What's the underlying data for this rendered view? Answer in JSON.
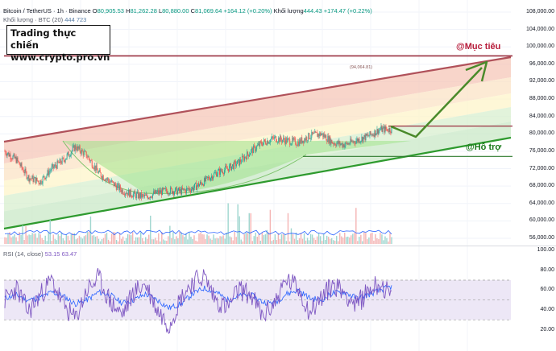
{
  "header": {
    "symbol": "Bitcoin / TetherUS · 1h · Binance",
    "open_label": "O",
    "open": "80,905.53",
    "high_label": "H",
    "high": "81,262.28",
    "low_label": "L",
    "low": "80,880.00",
    "close_label": "C",
    "close": "81,069.64",
    "change": "+164.12 (+0.20%)",
    "volume_label": "Khối lượng",
    "volume": "444.43",
    "volume_change": "+174.47 (+0.22%)",
    "vol_ma_label": "Khối lượng · BTC (20)",
    "vol_ma_value_1": "444",
    "vol_ma_value_2": "723"
  },
  "brand": {
    "line1": "Trading thực chiến",
    "line2": "www.crypto.pro.vn"
  },
  "price_axis": {
    "labels": [
      "108,000.00",
      "104,000.00",
      "100,000.00",
      "96,000.00",
      "92,000.00",
      "88,000.00",
      "84,000.00",
      "80,000.00",
      "76,000.00",
      "72,000.00",
      "68,000.00",
      "64,000.00",
      "60,000.00",
      "56,000.00"
    ]
  },
  "price_tags": [
    {
      "value": "97,924.49",
      "color": "#b71c3a"
    },
    {
      "value": "81,791.48",
      "color": "#b71c3a"
    },
    {
      "value": "74,821.57",
      "color": "#1b7a1b"
    }
  ],
  "annotations": {
    "target": "@Mục tiêu",
    "support": "@Hỗ trợ",
    "channel_high": "(94,064.81)"
  },
  "rsi": {
    "label": "RSI (14, close)",
    "value_1": "53.15",
    "value_2": "63.47",
    "axis": [
      "100.00",
      "80.00",
      "60.00",
      "40.00",
      "20.00"
    ]
  },
  "colors": {
    "channel_top": "#b0515a",
    "channel_bottom": "#2e9a2e",
    "target_line": "#9a3040",
    "support_line": "#2d7a2d",
    "arrow": "#4a8a2a",
    "rsi_line": "#7e57c2",
    "rsi_band": "#ede7f6",
    "candle_up": "#26a69a",
    "candle_down": "#ef5350"
  },
  "chart_data": [
    {
      "type": "candlestick",
      "title": "Bitcoin / TetherUS · 1h · Binance",
      "y_axis_range": [
        54000,
        110000
      ],
      "approx_close_path": [
        76000,
        74000,
        70000,
        69000,
        72000,
        74000,
        77000,
        75000,
        71000,
        69000,
        67000,
        66000,
        65500,
        66500,
        67000,
        66800,
        67500,
        69000,
        71000,
        72000,
        73500,
        76000,
        78000,
        79000,
        78500,
        78000,
        79500,
        80000,
        78000,
        77500,
        78500,
        79500,
        81000,
        81069.64
      ],
      "levels": {
        "target": 97924.49,
        "resistance": 81791.48,
        "support": 74821.57,
        "channel_high_marker": 94064.81
      },
      "volume_indicator": {
        "label": "Khối lượng · BTC (20)",
        "values": [
          444,
          723
        ]
      }
    },
    {
      "type": "line",
      "title": "RSI (14, close)",
      "series": [
        {
          "name": "RSI",
          "approx_values": [
            50,
            62,
            38,
            55,
            70,
            45,
            30,
            60,
            72,
            48,
            35,
            58,
            66,
            40,
            25,
            52,
            68,
            74,
            50,
            42,
            61,
            55,
            33,
            47,
            70,
            63,
            38,
            52,
            66,
            58,
            44,
            60,
            67,
            53.15
          ]
        },
        {
          "name": "RSI-based MA",
          "approx_values": [
            52,
            55,
            50,
            52,
            58,
            54,
            46,
            50,
            58,
            55,
            47,
            50,
            56,
            50,
            42,
            46,
            56,
            62,
            58,
            50,
            54,
            55,
            48,
            47,
            56,
            60,
            52,
            50,
            57,
            58,
            52,
            55,
            60,
            63.47
          ]
        }
      ],
      "ylim": [
        10,
        100
      ],
      "bands": [
        30,
        70
      ]
    }
  ]
}
